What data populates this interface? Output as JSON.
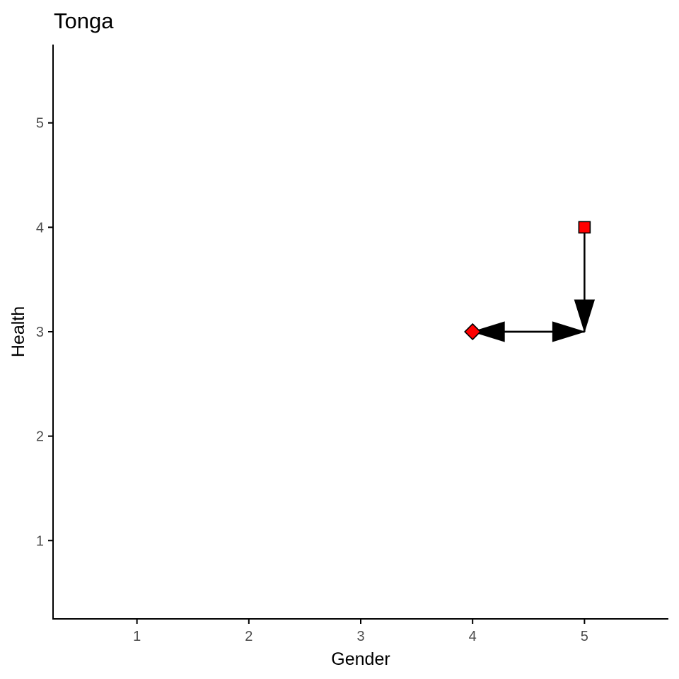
{
  "chart_data": {
    "type": "scatter",
    "title": "Tonga",
    "xlabel": "Gender",
    "ylabel": "Health",
    "xlim": [
      0.25,
      5.75
    ],
    "ylim": [
      0.25,
      5.75
    ],
    "x_ticks": [
      "1",
      "2",
      "3",
      "4",
      "5"
    ],
    "y_ticks": [
      "1",
      "2",
      "3",
      "4",
      "5"
    ],
    "grid": false,
    "points": [
      {
        "x": 5,
        "y": 4,
        "shape": "square",
        "color": "#ff0000"
      },
      {
        "x": 4,
        "y": 3,
        "shape": "diamond",
        "color": "#ff0000"
      }
    ],
    "arrows": [
      {
        "from": [
          5,
          4
        ],
        "to": [
          5,
          3
        ]
      },
      {
        "from": [
          4,
          3
        ],
        "to": [
          5,
          3
        ]
      },
      {
        "from": [
          5,
          3
        ],
        "to": [
          4,
          3
        ]
      }
    ]
  }
}
